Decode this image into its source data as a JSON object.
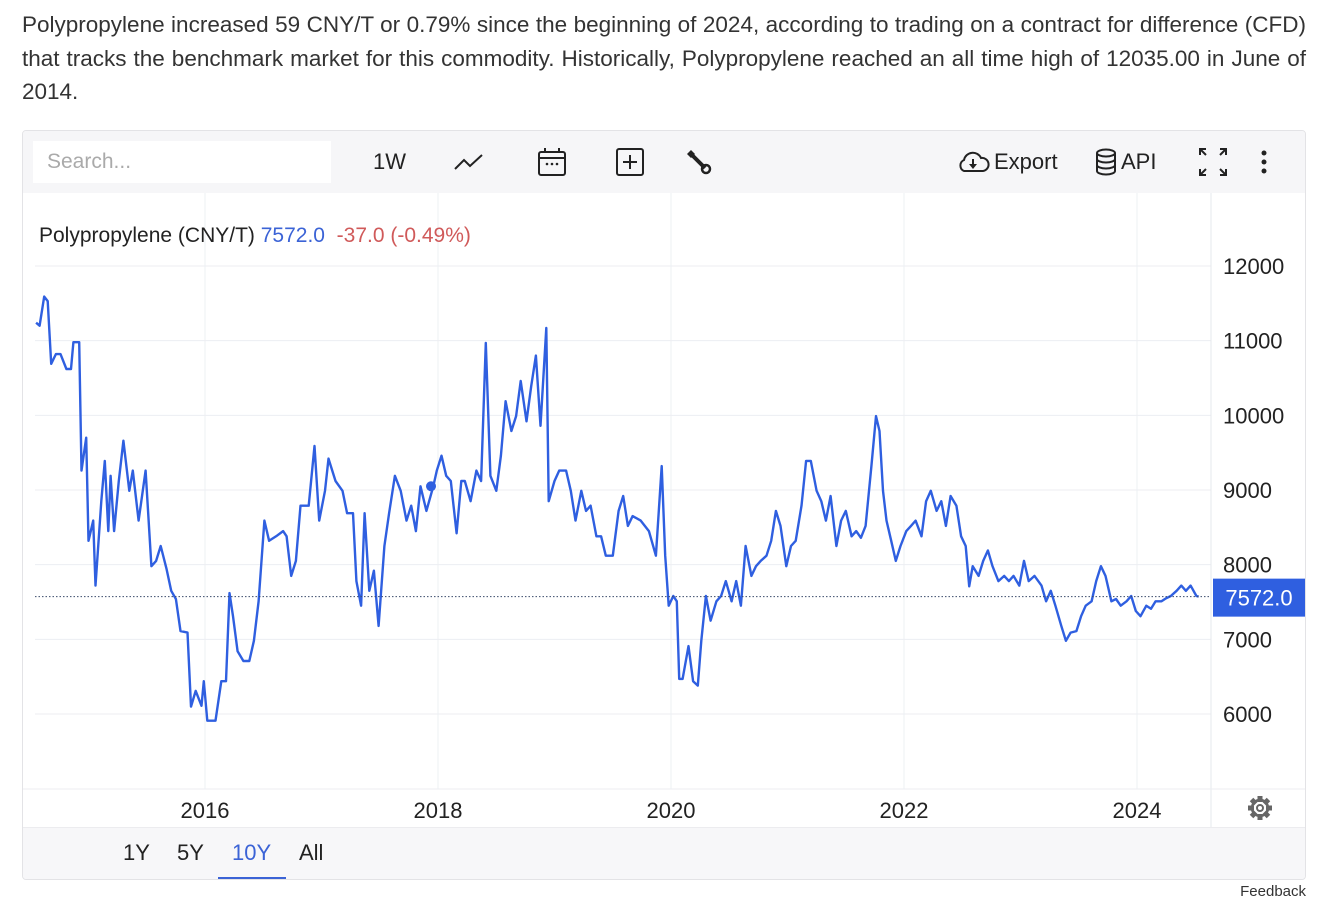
{
  "intro": "Polypropylene increased 59 CNY/T or 0.79% since the beginning of 2024, according to trading on a contract for difference (CFD) that tracks the benchmark market for this commodity. Historically, Polypropylene reached an all time high of 12035.00 in June of 2014.",
  "toolbar": {
    "search_placeholder": "Search...",
    "interval": "1W",
    "export": "Export",
    "api": "API",
    "icons": [
      "line-chart-icon",
      "calendar-icon",
      "add-box-icon",
      "wrench-icon",
      "cloud-download-icon",
      "database-icon",
      "fullscreen-icon",
      "more-vertical-icon"
    ]
  },
  "legend": {
    "name": "Polypropylene (CNY/T)",
    "price": "7572.0",
    "change": "-37.0 (-0.49%)"
  },
  "ranges": {
    "items": [
      "1Y",
      "5Y",
      "10Y",
      "All"
    ],
    "selected": "10Y"
  },
  "feedback": "Feedback",
  "colors": {
    "line": "#2f5fe0",
    "price": "#3b63d6",
    "change": "#d05a5a",
    "label_bg": "#2f5fe0"
  },
  "chart_data": {
    "type": "line",
    "series": [
      {
        "values": [
          [
            2014.55,
            11240
          ],
          [
            2014.58,
            11200
          ],
          [
            2014.62,
            11590
          ],
          [
            2014.65,
            11530
          ],
          [
            2014.68,
            10690
          ],
          [
            2014.72,
            10820
          ],
          [
            2014.76,
            10820
          ],
          [
            2014.81,
            10620
          ],
          [
            2014.85,
            10620
          ],
          [
            2014.87,
            10980
          ],
          [
            2014.92,
            10980
          ],
          [
            2014.94,
            9260
          ],
          [
            2014.98,
            9700
          ],
          [
            2015.0,
            8320
          ],
          [
            2015.04,
            8590
          ],
          [
            2015.06,
            7720
          ],
          [
            2015.11,
            8850
          ],
          [
            2015.14,
            9390
          ],
          [
            2015.17,
            8450
          ],
          [
            2015.19,
            9190
          ],
          [
            2015.22,
            8450
          ],
          [
            2015.26,
            9120
          ],
          [
            2015.3,
            9660
          ],
          [
            2015.35,
            8990
          ],
          [
            2015.38,
            9260
          ],
          [
            2015.43,
            8590
          ],
          [
            2015.49,
            9260
          ],
          [
            2015.54,
            7980
          ],
          [
            2015.58,
            8050
          ],
          [
            2015.62,
            8250
          ],
          [
            2015.67,
            7940
          ],
          [
            2015.71,
            7650
          ],
          [
            2015.75,
            7540
          ],
          [
            2015.79,
            7110
          ],
          [
            2015.85,
            7090
          ],
          [
            2015.88,
            6100
          ],
          [
            2015.92,
            6310
          ],
          [
            2015.97,
            6110
          ],
          [
            2015.99,
            6440
          ],
          [
            2016.02,
            5910
          ],
          [
            2016.09,
            5910
          ],
          [
            2016.14,
            6440
          ],
          [
            2016.18,
            6440
          ],
          [
            2016.21,
            7620
          ],
          [
            2016.24,
            7310
          ],
          [
            2016.28,
            6840
          ],
          [
            2016.33,
            6710
          ],
          [
            2016.38,
            6710
          ],
          [
            2016.42,
            6980
          ],
          [
            2016.46,
            7510
          ],
          [
            2016.51,
            8590
          ],
          [
            2016.55,
            8320
          ],
          [
            2016.61,
            8380
          ],
          [
            2016.67,
            8450
          ],
          [
            2016.7,
            8380
          ],
          [
            2016.74,
            7850
          ],
          [
            2016.78,
            8050
          ],
          [
            2016.82,
            8790
          ],
          [
            2016.89,
            8790
          ],
          [
            2016.94,
            9590
          ],
          [
            2016.98,
            8590
          ],
          [
            2017.03,
            8990
          ],
          [
            2017.06,
            9420
          ],
          [
            2017.12,
            9120
          ],
          [
            2017.18,
            8990
          ],
          [
            2017.22,
            8690
          ],
          [
            2017.27,
            8690
          ],
          [
            2017.3,
            7780
          ],
          [
            2017.34,
            7450
          ],
          [
            2017.37,
            8690
          ],
          [
            2017.41,
            7650
          ],
          [
            2017.45,
            7920
          ],
          [
            2017.49,
            7180
          ],
          [
            2017.54,
            8250
          ],
          [
            2017.58,
            8690
          ],
          [
            2017.63,
            9190
          ],
          [
            2017.68,
            8990
          ],
          [
            2017.73,
            8590
          ],
          [
            2017.77,
            8790
          ],
          [
            2017.81,
            8450
          ],
          [
            2017.85,
            9050
          ],
          [
            2017.9,
            8720
          ],
          [
            2017.96,
            9050
          ],
          [
            2017.99,
            9260
          ],
          [
            2018.03,
            9460
          ],
          [
            2018.07,
            9190
          ],
          [
            2018.11,
            9120
          ],
          [
            2018.16,
            8420
          ],
          [
            2018.2,
            9120
          ],
          [
            2018.23,
            9120
          ],
          [
            2018.28,
            8850
          ],
          [
            2018.33,
            9260
          ],
          [
            2018.37,
            9120
          ],
          [
            2018.41,
            10970
          ],
          [
            2018.45,
            9190
          ],
          [
            2018.5,
            8990
          ],
          [
            2018.54,
            9460
          ],
          [
            2018.58,
            10190
          ],
          [
            2018.63,
            9790
          ],
          [
            2018.67,
            9990
          ],
          [
            2018.71,
            10460
          ],
          [
            2018.76,
            9920
          ],
          [
            2018.8,
            10390
          ],
          [
            2018.84,
            10800
          ],
          [
            2018.88,
            9860
          ],
          [
            2018.93,
            11170
          ],
          [
            2018.95,
            8850
          ],
          [
            2019.0,
            9120
          ],
          [
            2019.04,
            9260
          ],
          [
            2019.1,
            9260
          ],
          [
            2019.14,
            8990
          ],
          [
            2019.18,
            8590
          ],
          [
            2019.23,
            8990
          ],
          [
            2019.27,
            8720
          ],
          [
            2019.31,
            8790
          ],
          [
            2019.36,
            8380
          ],
          [
            2019.4,
            8380
          ],
          [
            2019.44,
            8120
          ],
          [
            2019.5,
            8120
          ],
          [
            2019.55,
            8720
          ],
          [
            2019.59,
            8920
          ],
          [
            2019.63,
            8520
          ],
          [
            2019.67,
            8650
          ],
          [
            2019.74,
            8590
          ],
          [
            2019.81,
            8450
          ],
          [
            2019.87,
            8120
          ],
          [
            2019.92,
            9320
          ],
          [
            2019.95,
            8120
          ],
          [
            2019.98,
            7450
          ],
          [
            2020.02,
            7580
          ],
          [
            2020.05,
            7510
          ],
          [
            2020.07,
            6470
          ],
          [
            2020.1,
            6470
          ],
          [
            2020.15,
            6910
          ],
          [
            2020.19,
            6440
          ],
          [
            2020.23,
            6380
          ],
          [
            2020.26,
            6980
          ],
          [
            2020.3,
            7580
          ],
          [
            2020.34,
            7250
          ],
          [
            2020.39,
            7510
          ],
          [
            2020.43,
            7580
          ],
          [
            2020.47,
            7780
          ],
          [
            2020.52,
            7510
          ],
          [
            2020.56,
            7780
          ],
          [
            2020.6,
            7450
          ],
          [
            2020.64,
            8250
          ],
          [
            2020.69,
            7850
          ],
          [
            2020.73,
            7980
          ],
          [
            2020.77,
            8050
          ],
          [
            2020.82,
            8120
          ],
          [
            2020.86,
            8320
          ],
          [
            2020.9,
            8720
          ],
          [
            2020.94,
            8520
          ],
          [
            2020.99,
            7980
          ],
          [
            2021.03,
            8250
          ],
          [
            2021.07,
            8320
          ],
          [
            2021.12,
            8790
          ],
          [
            2021.16,
            9390
          ],
          [
            2021.2,
            9390
          ],
          [
            2021.25,
            8990
          ],
          [
            2021.29,
            8850
          ],
          [
            2021.33,
            8590
          ],
          [
            2021.37,
            8920
          ],
          [
            2021.42,
            8250
          ],
          [
            2021.46,
            8590
          ],
          [
            2021.5,
            8720
          ],
          [
            2021.55,
            8380
          ],
          [
            2021.59,
            8450
          ],
          [
            2021.63,
            8360
          ],
          [
            2021.67,
            8520
          ],
          [
            2021.72,
            9320
          ],
          [
            2021.76,
            9990
          ],
          [
            2021.79,
            9790
          ],
          [
            2021.82,
            8990
          ],
          [
            2021.85,
            8590
          ],
          [
            2021.89,
            8320
          ],
          [
            2021.93,
            8050
          ],
          [
            2021.97,
            8250
          ],
          [
            2022.02,
            8450
          ],
          [
            2022.06,
            8520
          ],
          [
            2022.1,
            8590
          ],
          [
            2022.15,
            8380
          ],
          [
            2022.19,
            8850
          ],
          [
            2022.23,
            8990
          ],
          [
            2022.28,
            8720
          ],
          [
            2022.32,
            8850
          ],
          [
            2022.36,
            8520
          ],
          [
            2022.4,
            8920
          ],
          [
            2022.45,
            8790
          ],
          [
            2022.49,
            8380
          ],
          [
            2022.53,
            8250
          ],
          [
            2022.56,
            7710
          ],
          [
            2022.59,
            7980
          ],
          [
            2022.64,
            7850
          ],
          [
            2022.68,
            8050
          ],
          [
            2022.72,
            8190
          ],
          [
            2022.76,
            7980
          ],
          [
            2022.81,
            7780
          ],
          [
            2022.86,
            7850
          ],
          [
            2022.9,
            7780
          ],
          [
            2022.94,
            7850
          ],
          [
            2022.99,
            7720
          ],
          [
            2023.03,
            8050
          ],
          [
            2023.07,
            7780
          ],
          [
            2023.12,
            7850
          ],
          [
            2023.18,
            7720
          ],
          [
            2023.22,
            7510
          ],
          [
            2023.26,
            7650
          ],
          [
            2023.3,
            7450
          ],
          [
            2023.35,
            7180
          ],
          [
            2023.39,
            6980
          ],
          [
            2023.43,
            7090
          ],
          [
            2023.48,
            7110
          ],
          [
            2023.52,
            7310
          ],
          [
            2023.56,
            7450
          ],
          [
            2023.61,
            7510
          ],
          [
            2023.65,
            7780
          ],
          [
            2023.69,
            7980
          ],
          [
            2023.73,
            7850
          ],
          [
            2023.78,
            7510
          ],
          [
            2023.82,
            7540
          ],
          [
            2023.86,
            7450
          ],
          [
            2023.91,
            7510
          ],
          [
            2023.95,
            7580
          ],
          [
            2023.99,
            7380
          ],
          [
            2024.03,
            7310
          ],
          [
            2024.08,
            7450
          ],
          [
            2024.12,
            7410
          ],
          [
            2024.16,
            7510
          ],
          [
            2024.21,
            7510
          ],
          [
            2024.25,
            7550
          ],
          [
            2024.29,
            7580
          ],
          [
            2024.34,
            7650
          ],
          [
            2024.38,
            7720
          ],
          [
            2024.42,
            7650
          ],
          [
            2024.46,
            7720
          ],
          [
            2024.51,
            7580
          ],
          [
            2024.53,
            7572
          ]
        ]
      }
    ],
    "marker": [
      2017.94,
      9050
    ],
    "last_value": 7572.0,
    "xticks": [
      "2016",
      "2018",
      "2020",
      "2022",
      "2024"
    ],
    "yticks": [
      "12000",
      "11000",
      "10000",
      "9000",
      "8000",
      "7000",
      "6000"
    ],
    "xlim": [
      2014.55,
      2025.1
    ],
    "ylim": [
      4970,
      13000
    ],
    "grid": true,
    "yaxis_side": "right"
  }
}
